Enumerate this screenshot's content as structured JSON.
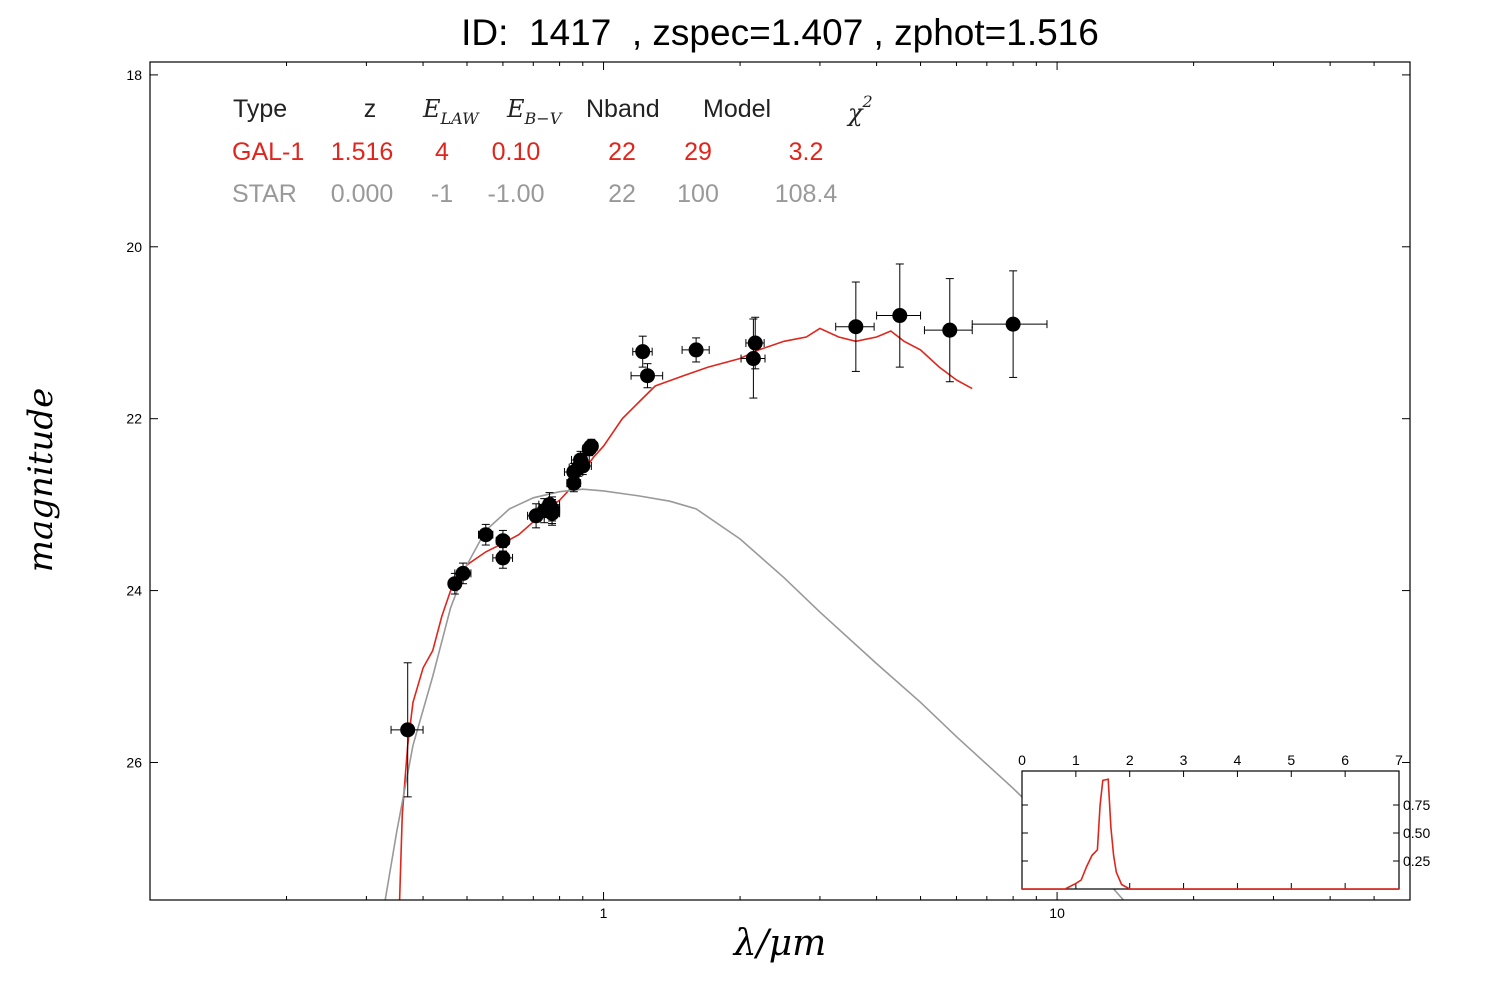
{
  "title": "ID:  1417  , zspec=1.407 , zphot=1.516",
  "colors": {
    "galaxy": "#e0261c",
    "star": "#999999",
    "points": "#000000",
    "pdz": "#e0261c"
  },
  "chart_data": {
    "type": "scatter",
    "x_scale": "log",
    "y_inverted": true,
    "xlabel": "λ/μm",
    "ylabel": "magnitude",
    "xlim": [
      0.1,
      60
    ],
    "ylim": [
      27.6,
      17.85
    ],
    "x_ticks": [
      {
        "value": 1,
        "label": "1"
      },
      {
        "value": 10,
        "label": "10"
      }
    ],
    "y_ticks": [
      {
        "value": 18,
        "label": "18"
      },
      {
        "value": 20,
        "label": "20"
      },
      {
        "value": 22,
        "label": "22"
      },
      {
        "value": 24,
        "label": "24"
      },
      {
        "value": 26,
        "label": "26"
      }
    ],
    "legend_table": {
      "header": {
        "type": "Type",
        "z": "z",
        "nband": "Nband",
        "model": "Model"
      },
      "rows": [
        {
          "type": "GAL-1",
          "z": "1.516",
          "elaw": "4",
          "ebv": "0.10",
          "nband": "22",
          "model": "29",
          "chi2": "3.2",
          "color": "#e0261c"
        },
        {
          "type": "STAR",
          "z": "0.000",
          "elaw": "-1",
          "ebv": "-1.00",
          "nband": "22",
          "model": "100",
          "chi2": "108.4",
          "color": "#999999"
        }
      ]
    },
    "points": [
      {
        "x": 0.37,
        "y": 25.62,
        "xerr": 0.03,
        "yerr": 0.78
      },
      {
        "x": 0.47,
        "y": 23.92,
        "xerr": 0.01,
        "yerr": 0.12
      },
      {
        "x": 0.49,
        "y": 23.8,
        "xerr": 0.02,
        "yerr": 0.12
      },
      {
        "x": 0.55,
        "y": 23.35,
        "xerr": 0.02,
        "yerr": 0.12
      },
      {
        "x": 0.6,
        "y": 23.42,
        "xerr": 0.02,
        "yerr": 0.12
      },
      {
        "x": 0.6,
        "y": 23.62,
        "xerr": 0.03,
        "yerr": 0.12
      },
      {
        "x": 0.71,
        "y": 23.13,
        "xerr": 0.03,
        "yerr": 0.14
      },
      {
        "x": 0.74,
        "y": 23.07,
        "xerr": 0.03,
        "yerr": 0.14
      },
      {
        "x": 0.76,
        "y": 23.0,
        "xerr": 0.04,
        "yerr": 0.14
      },
      {
        "x": 0.77,
        "y": 23.08,
        "xerr": 0.03,
        "yerr": 0.14
      },
      {
        "x": 0.77,
        "y": 23.1,
        "xerr": 0.03,
        "yerr": 0.14
      },
      {
        "x": 0.77,
        "y": 23.05,
        "xerr": 0.03,
        "yerr": 0.14
      },
      {
        "x": 0.86,
        "y": 22.62,
        "xerr": 0.04,
        "yerr": 0.1
      },
      {
        "x": 0.86,
        "y": 22.75,
        "xerr": 0.03,
        "yerr": 0.1
      },
      {
        "x": 0.88,
        "y": 22.57,
        "xerr": 0.04,
        "yerr": 0.1
      },
      {
        "x": 0.89,
        "y": 22.48,
        "xerr": 0.04,
        "yerr": 0.1
      },
      {
        "x": 0.9,
        "y": 22.55,
        "xerr": 0.04,
        "yerr": 0.1
      },
      {
        "x": 0.93,
        "y": 22.35,
        "xerr": 0.03,
        "yerr": 0.08
      },
      {
        "x": 0.94,
        "y": 22.32,
        "xerr": 0.03,
        "yerr": 0.08
      },
      {
        "x": 1.22,
        "y": 21.22,
        "xerr": 0.06,
        "yerr": 0.18
      },
      {
        "x": 1.25,
        "y": 21.5,
        "xerr": 0.1,
        "yerr": 0.14
      },
      {
        "x": 1.6,
        "y": 21.2,
        "xerr": 0.11,
        "yerr": 0.14
      },
      {
        "x": 2.14,
        "y": 21.3,
        "xerr": 0.13,
        "yerr": 0.46
      },
      {
        "x": 2.16,
        "y": 21.12,
        "xerr": 0.1,
        "yerr": 0.3
      },
      {
        "x": 3.6,
        "y": 20.93,
        "xerr": 0.35,
        "yerr": 0.52
      },
      {
        "x": 4.5,
        "y": 20.8,
        "xerr": 0.5,
        "yerr": 0.6
      },
      {
        "x": 5.8,
        "y": 20.97,
        "xerr": 0.7,
        "yerr": 0.6
      },
      {
        "x": 8.0,
        "y": 20.9,
        "xerr": 1.5,
        "yerr": 0.62
      }
    ],
    "series": [
      {
        "name": "GAL-1",
        "color": "#e0261c",
        "x": [
          0.355,
          0.36,
          0.37,
          0.38,
          0.4,
          0.42,
          0.44,
          0.46,
          0.5,
          0.55,
          0.6,
          0.65,
          0.7,
          0.75,
          0.8,
          0.85,
          0.9,
          0.95,
          1.0,
          1.1,
          1.2,
          1.3,
          1.5,
          1.7,
          2.0,
          2.2,
          2.5,
          2.8,
          3.0,
          3.3,
          3.6,
          4.0,
          4.3,
          4.6,
          5.0,
          5.5,
          6.0,
          6.5
        ],
        "y": [
          27.6,
          26.6,
          25.8,
          25.3,
          24.9,
          24.7,
          24.3,
          24.0,
          23.7,
          23.55,
          23.45,
          23.35,
          23.2,
          23.05,
          22.95,
          22.8,
          22.62,
          22.45,
          22.32,
          22.0,
          21.8,
          21.62,
          21.5,
          21.4,
          21.3,
          21.2,
          21.1,
          21.05,
          20.95,
          21.05,
          21.1,
          21.05,
          20.98,
          21.1,
          21.2,
          21.4,
          21.55,
          21.65
        ]
      },
      {
        "name": "STAR",
        "color": "#999999",
        "x": [
          0.33,
          0.35,
          0.38,
          0.42,
          0.46,
          0.5,
          0.55,
          0.62,
          0.7,
          0.8,
          0.9,
          1.0,
          1.2,
          1.4,
          1.6,
          2.0,
          2.5,
          3.0,
          4.0,
          5.0,
          6.0,
          8.0,
          10.0,
          12.0,
          14.0
        ],
        "y": [
          27.6,
          26.8,
          25.8,
          25.0,
          24.2,
          23.7,
          23.3,
          23.05,
          22.92,
          22.85,
          22.82,
          22.84,
          22.9,
          22.96,
          23.05,
          23.4,
          23.85,
          24.25,
          24.85,
          25.3,
          25.7,
          26.3,
          26.8,
          27.2,
          27.6
        ]
      }
    ],
    "inset": {
      "type": "line",
      "xlim": [
        0,
        7
      ],
      "ylim": [
        0,
        1
      ],
      "x_ticks": [
        "0",
        "1",
        "2",
        "3",
        "4",
        "5",
        "6",
        "7"
      ],
      "y_ticks": [
        "0.25",
        "0.50",
        "0.75"
      ],
      "x": [
        0,
        0.8,
        1.0,
        1.1,
        1.2,
        1.25,
        1.3,
        1.4,
        1.45,
        1.5,
        1.6,
        1.65,
        1.7,
        1.75,
        1.85,
        2.0,
        7
      ],
      "y": [
        0.0,
        0.0,
        0.05,
        0.08,
        0.2,
        0.25,
        0.3,
        0.35,
        0.75,
        0.97,
        0.98,
        0.55,
        0.3,
        0.15,
        0.04,
        0.0,
        0.0
      ]
    }
  }
}
